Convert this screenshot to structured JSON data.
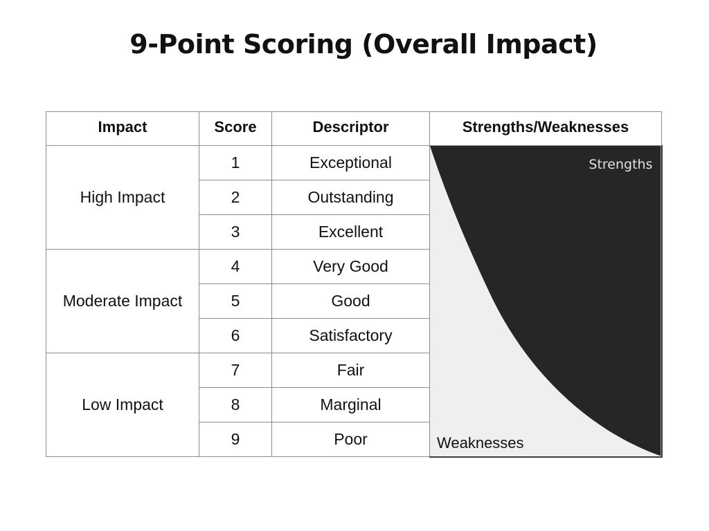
{
  "slide": {
    "title": "9-Point Scoring (Overall Impact)"
  },
  "table": {
    "headers": {
      "impact": "Impact",
      "score": "Score",
      "descriptor": "Descriptor",
      "strengths_weaknesses": "Strengths/Weaknesses"
    },
    "groups": [
      {
        "label": "High Impact",
        "rows": [
          {
            "score": "1",
            "descriptor": "Exceptional"
          },
          {
            "score": "2",
            "descriptor": "Outstanding"
          },
          {
            "score": "3",
            "descriptor": "Excellent"
          }
        ]
      },
      {
        "label": "Moderate Impact",
        "rows": [
          {
            "score": "4",
            "descriptor": "Very Good"
          },
          {
            "score": "5",
            "descriptor": "Good"
          },
          {
            "score": "6",
            "descriptor": "Satisfactory"
          }
        ]
      },
      {
        "label": "Low Impact",
        "rows": [
          {
            "score": "7",
            "descriptor": "Fair"
          },
          {
            "score": "8",
            "descriptor": "Marginal"
          },
          {
            "score": "9",
            "descriptor": "Poor"
          }
        ]
      }
    ],
    "graphic": {
      "strengths_label": "Strengths",
      "weaknesses_label": "Weaknesses",
      "strengths_color": "#262626",
      "weaknesses_color": "#efefef"
    }
  }
}
